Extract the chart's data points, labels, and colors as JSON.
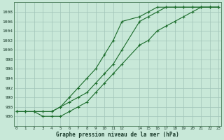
{
  "xlabel": "Graphe pression niveau de la mer (hPa)",
  "background_color": "#c8e8d8",
  "grid_color": "#a0c4b8",
  "line_color": "#1a6b2a",
  "hours_all": [
    0,
    1,
    2,
    3,
    4,
    5,
    6,
    7,
    8,
    9,
    10,
    11,
    12,
    14,
    15,
    16,
    17,
    18,
    19,
    20,
    21,
    22,
    23
  ],
  "series1": [
    987,
    987,
    987,
    987,
    987,
    988,
    989,
    990,
    991,
    993,
    995,
    997,
    1000,
    1006,
    1007,
    1008,
    1009,
    1009,
    1009,
    1009,
    1009,
    1009,
    1009
  ],
  "series2": [
    987,
    987,
    987,
    987,
    987,
    988,
    990,
    992,
    994,
    996,
    999,
    1002,
    1006,
    1007,
    1008,
    1009,
    1009,
    1009,
    1009,
    1009,
    1009,
    1009,
    1009
  ],
  "series3": [
    987,
    987,
    987,
    986,
    986,
    986,
    987,
    988,
    989,
    991,
    993,
    995,
    997,
    1001,
    1002,
    1004,
    1005,
    1006,
    1007,
    1008,
    1009,
    1009,
    1009
  ],
  "ylim_min": 984,
  "ylim_max": 1010,
  "yticks": [
    986,
    988,
    990,
    992,
    994,
    996,
    998,
    1000,
    1002,
    1004,
    1006,
    1008
  ],
  "xticks": [
    0,
    1,
    2,
    3,
    4,
    5,
    6,
    7,
    8,
    9,
    10,
    11,
    12,
    14,
    15,
    16,
    17,
    18,
    19,
    20,
    21,
    22,
    23
  ],
  "xlim_min": -0.3,
  "xlim_max": 23.3,
  "figwidth": 3.2,
  "figheight": 2.0,
  "dpi": 100
}
